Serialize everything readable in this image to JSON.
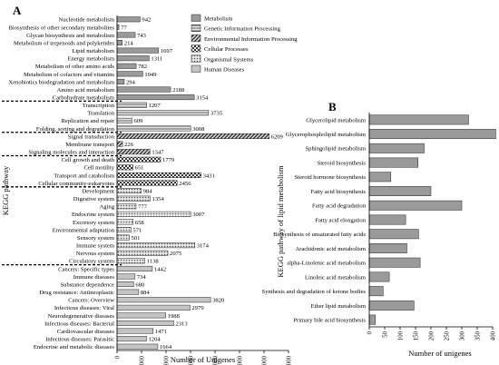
{
  "chart_data": [
    {
      "panel": "A",
      "type": "bar",
      "orientation": "horizontal",
      "ylabel": "KEGG pathway",
      "xlabel": "Number of Unigenes",
      "xlim": [
        0,
        7000
      ],
      "xticks": [
        0,
        1000,
        2000,
        3000,
        4000,
        5000,
        6000,
        7000
      ],
      "legend_position": "top-right",
      "legend": [
        {
          "name": "Metabolism",
          "color": "#9a9a9a",
          "pattern": "solid"
        },
        {
          "name": "Genetic Information Processing",
          "color": "#bdbdbd",
          "pattern": "hlines"
        },
        {
          "name": "Environmental Information Processing",
          "color": "#555555",
          "pattern": "diag"
        },
        {
          "name": "Cellular Processes",
          "color": "#555555",
          "pattern": "checker"
        },
        {
          "name": "Organismal Systems",
          "color": "#8a8a8a",
          "pattern": "dots"
        },
        {
          "name": "Human Diseases",
          "color": "#c4c4c4",
          "pattern": "solid"
        }
      ],
      "categories": [
        "Nucleotide metabolism",
        "Biosynthesis of other secondary metabolites",
        "Glycan biosynthesis and metabolism",
        "Metabolism of terpenoids and polyketides",
        "Lipid metabolism",
        "Energy metabolism",
        "Metabolism of other amino acids",
        "Metabolism of cofactors and vitamins",
        "Xenobiotics biodegradation and metabolism",
        "Amino acid metabolism",
        "Carbohydrate metabolism",
        "Transcription",
        "Translation",
        "Replication and repair",
        "Folding, sorting and degradation",
        "Signal transduction",
        "Membrane transport",
        "Signaling molecules and interaction",
        "Cell growth and death",
        "Cell motility",
        "Transport and catabolism",
        "Cellular community-eukaryotes",
        "Development",
        "Digestive system",
        "Aging",
        "Endocrine system",
        "Excretory system",
        "Environmental adaptation",
        "Sensory system",
        "Immune system",
        "Nervous system",
        "Circulatory system",
        "Cancers: Specific types",
        "Immune diseases",
        "Substance dependence",
        "Drug resistance: Antineoplastic",
        "Cancers: Overview",
        "Infectious diseases: Viral",
        "Neurodegenerative diseases",
        "Infectious diseases: Bacterial",
        "Cardiovascular diseases",
        "Infectious diseases: Parasitic",
        "Endocrine and metabolic diseases"
      ],
      "values": [
        942,
        77,
        743,
        214,
        1697,
        1311,
        782,
        1049,
        294,
        2188,
        3154,
        1207,
        3735,
        609,
        3008,
        6209,
        226,
        1347,
        1779,
        651,
        3431,
        2456,
        984,
        1354,
        777,
        3007,
        658,
        571,
        501,
        3174,
        2075,
        1138,
        1442,
        734,
        680,
        884,
        3820,
        2979,
        1988,
        2313,
        1471,
        1204,
        1664
      ],
      "groups": [
        11,
        4,
        3,
        4,
        10,
        11
      ],
      "value_labels": [
        "942",
        "77",
        "743",
        "214",
        "1697",
        "1311",
        "782",
        "1049",
        "294",
        "2188",
        "3154",
        "1207",
        "3735",
        "609",
        "3008",
        "6209",
        "226",
        "1347",
        "1779",
        "651",
        "3431",
        "2456",
        "984",
        "1354",
        "777",
        "3007",
        "658",
        "571",
        "501",
        "3174",
        "2075",
        "1138",
        "1442",
        "734",
        "680",
        "884",
        "3820",
        "2979",
        "1988",
        "2313",
        "1471",
        "1204",
        "1664"
      ]
    },
    {
      "panel": "B",
      "type": "bar",
      "orientation": "horizontal",
      "ylabel": "KEGG pathway of lipid metabolism",
      "xlabel": "Number of unigenes",
      "xlim": [
        0,
        400
      ],
      "xticks": [
        0,
        50,
        100,
        150,
        200,
        250,
        300,
        350,
        400
      ],
      "categories": [
        "Glycerolipid metabolism",
        "Glycerophospholipid metabolism",
        "Sphingolipid metabolism",
        "Steroid biosynthesis",
        "Steroid hormone biosynthesis",
        "Fatty acid biosynthesis",
        "Fatty acid degradation",
        "Fatty acid elongation",
        "Biosynthesis of unsaturated fatty acids",
        "Arachidonic acid metabolism",
        "alpha-Linolenic acid metabolism",
        "Linoleic acid metabolism",
        "Synthesis and degradation of ketone bodies",
        "Ether lipid metabolism",
        "Primary bile acid biosynthesis"
      ],
      "values": [
        322,
        410,
        178,
        158,
        70,
        200,
        300,
        118,
        160,
        122,
        165,
        65,
        45,
        145,
        20
      ]
    }
  ]
}
